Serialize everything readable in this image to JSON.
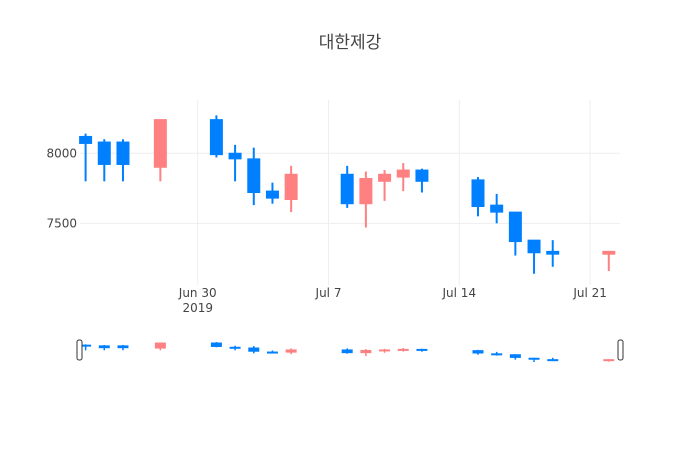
{
  "chart_data": {
    "type": "candlestick",
    "title": "대한제강",
    "x_tick_labels": [
      {
        "date": "2019-06-30",
        "label": "Jun 30",
        "sublabel": "2019"
      },
      {
        "date": "2019-07-07",
        "label": "Jul 7",
        "sublabel": ""
      },
      {
        "date": "2019-07-14",
        "label": "Jul 14",
        "sublabel": ""
      },
      {
        "date": "2019-07-21",
        "label": "Jul 21",
        "sublabel": ""
      }
    ],
    "y_ticks": [
      7500,
      8000
    ],
    "x_range": [
      "2019-06-24",
      "2019-07-22"
    ],
    "y_range": [
      7060,
      8380
    ],
    "grid": true,
    "rangeslider": true,
    "colors": {
      "increasing": "#ff8080",
      "decreasing": "#0080ff",
      "grid": "#eeeeee",
      "text": "#444444",
      "title": "#444444"
    },
    "candles": [
      {
        "date": "2019-06-24",
        "open": 8120,
        "high": 8140,
        "low": 7800,
        "close": 8070
      },
      {
        "date": "2019-06-25",
        "open": 8080,
        "high": 8100,
        "low": 7800,
        "close": 7920
      },
      {
        "date": "2019-06-26",
        "open": 8080,
        "high": 8100,
        "low": 7800,
        "close": 7920
      },
      {
        "date": "2019-06-28",
        "open": 7900,
        "high": 8240,
        "low": 7800,
        "close": 8240
      },
      {
        "date": "2019-07-01",
        "open": 8240,
        "high": 8270,
        "low": 7970,
        "close": 7990
      },
      {
        "date": "2019-07-02",
        "open": 8000,
        "high": 8060,
        "low": 7800,
        "close": 7960
      },
      {
        "date": "2019-07-03",
        "open": 7960,
        "high": 8040,
        "low": 7630,
        "close": 7720
      },
      {
        "date": "2019-07-04",
        "open": 7730,
        "high": 7790,
        "low": 7640,
        "close": 7680
      },
      {
        "date": "2019-07-05",
        "open": 7670,
        "high": 7910,
        "low": 7580,
        "close": 7850
      },
      {
        "date": "2019-07-08",
        "open": 7850,
        "high": 7910,
        "low": 7610,
        "close": 7640
      },
      {
        "date": "2019-07-09",
        "open": 7640,
        "high": 7870,
        "low": 7470,
        "close": 7820
      },
      {
        "date": "2019-07-10",
        "open": 7800,
        "high": 7880,
        "low": 7660,
        "close": 7850
      },
      {
        "date": "2019-07-11",
        "open": 7830,
        "high": 7930,
        "low": 7730,
        "close": 7880
      },
      {
        "date": "2019-07-12",
        "open": 7880,
        "high": 7890,
        "low": 7720,
        "close": 7800
      },
      {
        "date": "2019-07-15",
        "open": 7810,
        "high": 7830,
        "low": 7550,
        "close": 7620
      },
      {
        "date": "2019-07-16",
        "open": 7630,
        "high": 7710,
        "low": 7500,
        "close": 7580
      },
      {
        "date": "2019-07-17",
        "open": 7580,
        "high": 7580,
        "low": 7270,
        "close": 7370
      },
      {
        "date": "2019-07-18",
        "open": 7380,
        "high": 7380,
        "low": 7140,
        "close": 7290
      },
      {
        "date": "2019-07-19",
        "open": 7300,
        "high": 7380,
        "low": 7190,
        "close": 7280
      },
      {
        "date": "2019-07-22",
        "open": 7280,
        "high": 7300,
        "low": 7160,
        "close": 7300
      }
    ]
  }
}
